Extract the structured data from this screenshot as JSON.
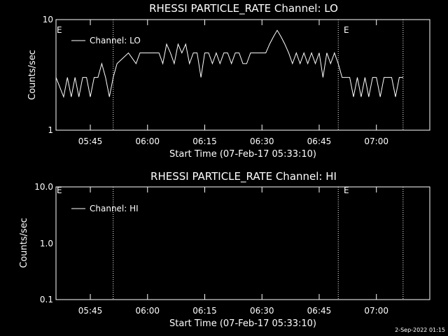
{
  "charts": [
    {
      "title": "RHESSI PARTICLE_RATE Channel: LO",
      "xlabel": "Start Time (07-Feb-17 05:33:10)",
      "ylabel": "Counts/sec",
      "xticks": [
        "05:45",
        "06:00",
        "06:15",
        "06:30",
        "06:45",
        "07:00"
      ],
      "yticks": [
        "10",
        "1"
      ],
      "legend": "Channel: LO",
      "flag_labels": [
        "E",
        "E"
      ]
    },
    {
      "title": "RHESSI PARTICLE_RATE Channel: HI",
      "xlabel": "Start Time (07-Feb-17 05:33:10)",
      "ylabel": "Counts/sec",
      "xticks": [
        "05:45",
        "06:00",
        "06:15",
        "06:30",
        "06:45",
        "07:00"
      ],
      "yticks": [
        "10.0",
        "1.0",
        "0.1"
      ],
      "legend": "Channel: HI",
      "flag_labels": [
        "E",
        "E"
      ]
    }
  ],
  "footer": "2-Sep-2022 01:15",
  "chart_data": [
    {
      "type": "line",
      "title": "RHESSI PARTICLE_RATE Channel: LO",
      "xlabel": "Start Time (07-Feb-17 05:33:10)",
      "ylabel": "Counts/sec",
      "yscale": "log",
      "ylim": [
        1,
        10
      ],
      "xlim": [
        "05:36",
        "07:14"
      ],
      "xtick_labels": [
        "05:45",
        "06:00",
        "06:15",
        "06:30",
        "06:45",
        "07:00"
      ],
      "legend_position": "top-left",
      "vertical_markers": [
        "05:51",
        "06:50",
        "07:07"
      ],
      "series": [
        {
          "name": "Channel: LO",
          "x": [
            "05:36",
            "05:38",
            "05:39",
            "05:40",
            "05:41",
            "05:42",
            "05:43",
            "05:44",
            "05:45",
            "05:46",
            "05:47",
            "05:48",
            "05:49",
            "05:50",
            "05:51",
            "05:52",
            "05:55",
            "05:57",
            "05:58",
            "05:59",
            "06:00",
            "06:03",
            "06:04",
            "06:05",
            "06:06",
            "06:07",
            "06:08",
            "06:09",
            "06:10",
            "06:11",
            "06:12",
            "06:13",
            "06:14",
            "06:15",
            "06:16",
            "06:17",
            "06:18",
            "06:19",
            "06:20",
            "06:21",
            "06:22",
            "06:23",
            "06:24",
            "06:25",
            "06:26",
            "06:27",
            "06:28",
            "06:30",
            "06:31",
            "06:32",
            "06:33",
            "06:34",
            "06:35",
            "06:36",
            "06:37",
            "06:38",
            "06:39",
            "06:40",
            "06:41",
            "06:42",
            "06:43",
            "06:44",
            "06:45",
            "06:46",
            "06:47",
            "06:48",
            "06:49",
            "06:50",
            "06:51",
            "06:53",
            "06:54",
            "06:55",
            "06:56",
            "06:57",
            "06:58",
            "06:59",
            "07:00",
            "07:01",
            "07:02",
            "07:03",
            "07:04",
            "07:05",
            "07:06",
            "07:07"
          ],
          "values": [
            3,
            2,
            3,
            2,
            3,
            2,
            3,
            3,
            2,
            3,
            3,
            4,
            3,
            2,
            3,
            4,
            5,
            4,
            5,
            5,
            5,
            5,
            4,
            6,
            5,
            4,
            6,
            5,
            6,
            4,
            5,
            5,
            3,
            5,
            5,
            4,
            5,
            4,
            5,
            5,
            4,
            5,
            5,
            4,
            4,
            5,
            5,
            5,
            5,
            6,
            7,
            8,
            7,
            6,
            5,
            4,
            5,
            4,
            5,
            4,
            5,
            4,
            5,
            3,
            5,
            4,
            5,
            4,
            3,
            3,
            2,
            3,
            2,
            3,
            2,
            3,
            3,
            2,
            3,
            3,
            3,
            2,
            3,
            3
          ]
        }
      ]
    },
    {
      "type": "line",
      "title": "RHESSI PARTICLE_RATE Channel: HI",
      "xlabel": "Start Time (07-Feb-17 05:33:10)",
      "ylabel": "Counts/sec",
      "yscale": "log",
      "ylim": [
        0.1,
        10
      ],
      "xlim": [
        "05:36",
        "07:14"
      ],
      "xtick_labels": [
        "05:45",
        "06:00",
        "06:15",
        "06:30",
        "06:45",
        "07:00"
      ],
      "legend_position": "top-left",
      "vertical_markers": [
        "05:51",
        "06:50",
        "07:07"
      ],
      "series": [
        {
          "name": "Channel: HI",
          "x": [],
          "values": []
        }
      ]
    }
  ]
}
